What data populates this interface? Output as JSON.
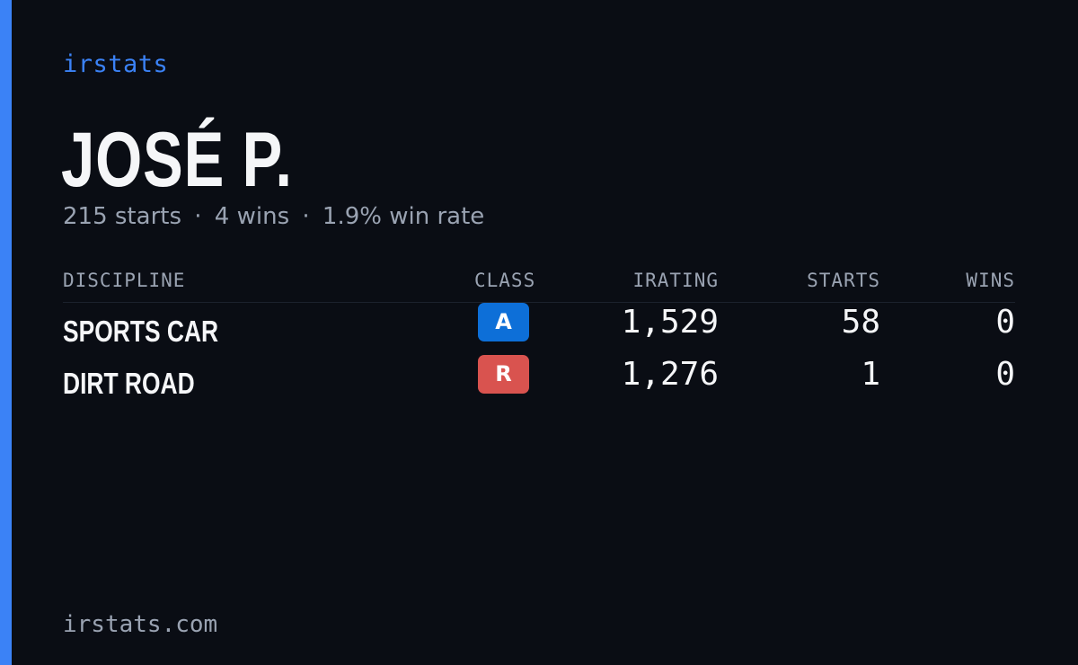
{
  "brand": "irstats",
  "driver": {
    "name": "JOSÉ P."
  },
  "summary": {
    "starts": "215 starts",
    "wins": "4 wins",
    "win_rate": "1.9% win rate",
    "separator": "·"
  },
  "table": {
    "headers": {
      "discipline": "DISCIPLINE",
      "class": "CLASS",
      "irating": "IRATING",
      "starts": "STARTS",
      "wins": "WINS"
    },
    "rows": [
      {
        "discipline": "SPORTS CAR",
        "class": "A",
        "class_color": "#0d6fd8",
        "irating": "1,529",
        "starts": "58",
        "wins": "0"
      },
      {
        "discipline": "DIRT ROAD",
        "class": "R",
        "class_color": "#d9534f",
        "irating": "1,276",
        "starts": "1",
        "wins": "0"
      }
    ]
  },
  "footer": "irstats.com",
  "colors": {
    "accent": "#3b82f6",
    "background": "#0a0d14",
    "muted_text": "#9aa3b2"
  }
}
